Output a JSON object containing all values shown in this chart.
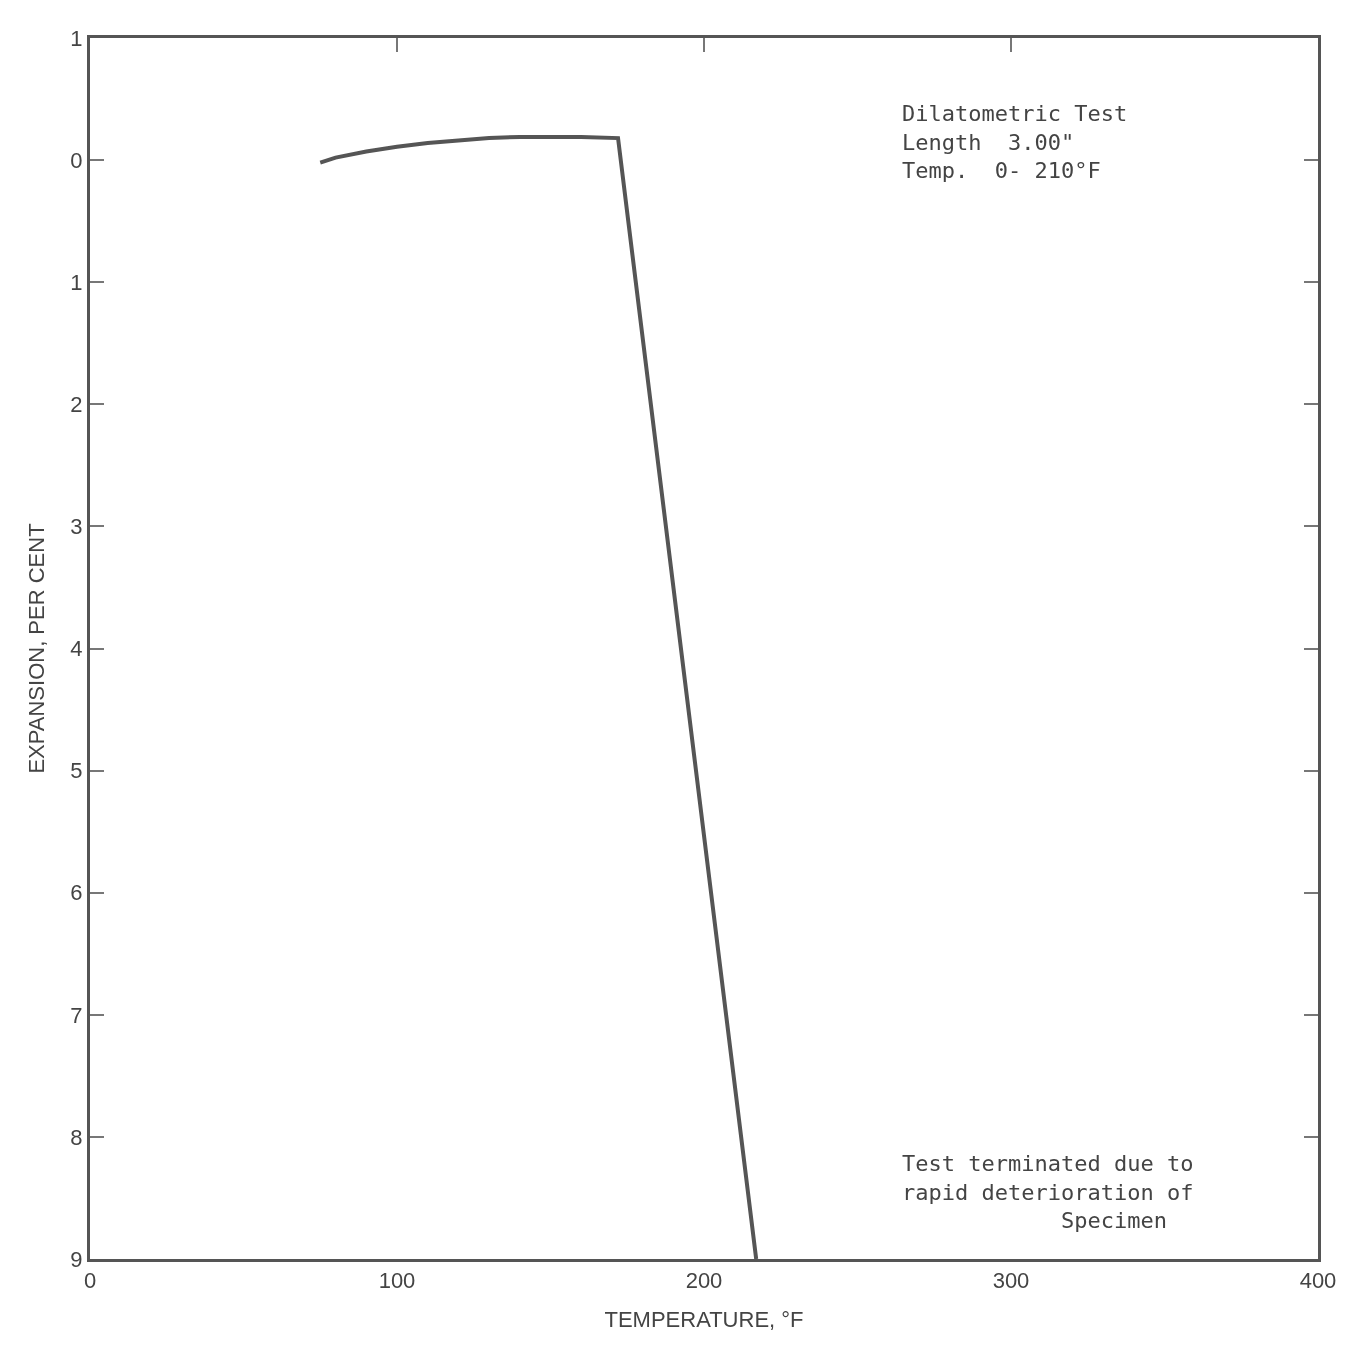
{
  "chart_data": {
    "type": "line",
    "xlabel": "TEMPERATURE, °F",
    "ylabel": "EXPANSION, PER CENT",
    "x": [
      75,
      80,
      90,
      100,
      110,
      120,
      130,
      140,
      150,
      160,
      172,
      217
    ],
    "values": [
      0.02,
      -0.02,
      -0.07,
      -0.11,
      -0.14,
      -0.16,
      -0.18,
      -0.19,
      -0.19,
      -0.19,
      -0.18,
      9
    ],
    "color": "#555555",
    "marker": "none",
    "line_style": "solid",
    "grid": false,
    "legend": false,
    "xlim": [
      0,
      400
    ],
    "xticks": [
      0,
      100,
      200,
      300,
      400
    ],
    "ylim": [
      9,
      -1
    ],
    "yticks": [
      {
        "value": -1,
        "label": "1"
      },
      0,
      1,
      2,
      3,
      4,
      5,
      6,
      7,
      8,
      9
    ],
    "annotations": [
      "Dilatometric Test\nLength  3.00\"\nTemp.  0- 210°F",
      "Test terminated due to\nrapid deterioration of\n            Specimen"
    ]
  }
}
